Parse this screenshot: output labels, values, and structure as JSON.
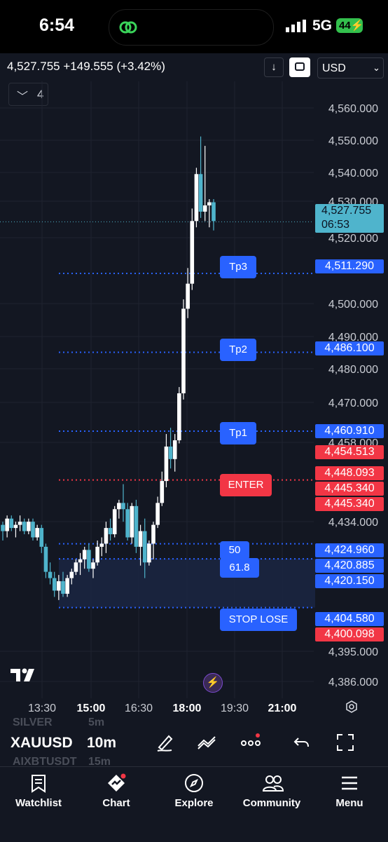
{
  "status_bar": {
    "time": "6:54",
    "network": "5G",
    "battery": "44"
  },
  "header": {
    "price_summary": "4,527.755 +149.555 (+3.42%)",
    "currency": "USD",
    "collapse_count": "4"
  },
  "chart_data": {
    "type": "candlestick",
    "symbol": "XAUUSD",
    "timeframe": "10m",
    "ylim": [
      4381,
      4565
    ],
    "y_ticks": [
      "4,560.000",
      "4,550.000",
      "4,540.000",
      "4,530.000",
      "4,520.000",
      "4,500.000",
      "4,490.000",
      "4,480.000",
      "4,470.000",
      "4,458.000",
      "4,434.000",
      "4,395.000",
      "4,386.000"
    ],
    "x_ticks": [
      {
        "label": "13:30",
        "bold": false
      },
      {
        "label": "15:00",
        "bold": true
      },
      {
        "label": "16:30",
        "bold": false
      },
      {
        "label": "18:00",
        "bold": true
      },
      {
        "label": "19:30",
        "bold": false
      },
      {
        "label": "21:00",
        "bold": true
      }
    ],
    "last_price": "4,527.755",
    "countdown": "06:53",
    "price_tags": [
      {
        "text": "4,511.290",
        "color": "#2962ff"
      },
      {
        "text": "4,486.100",
        "color": "#2962ff"
      },
      {
        "text": "4,460.910",
        "color": "#2962ff"
      },
      {
        "text": "4,454.513",
        "color": "#f23645"
      },
      {
        "text": "4,448.093",
        "color": "#f23645"
      },
      {
        "text": "4,445.340",
        "color": "#f23645"
      },
      {
        "text": "4,445.340",
        "color": "#f23645"
      },
      {
        "text": "4,424.960",
        "color": "#2962ff"
      },
      {
        "text": "4,420.885",
        "color": "#2962ff"
      },
      {
        "text": "4,420.150",
        "color": "#2962ff"
      },
      {
        "text": "4,404.580",
        "color": "#2962ff"
      },
      {
        "text": "4,400.098",
        "color": "#f23645"
      }
    ],
    "levels": [
      {
        "label": "Tp3",
        "value": 4511.29,
        "color": "#2962ff"
      },
      {
        "label": "Tp2",
        "value": 4486.1,
        "color": "#2962ff"
      },
      {
        "label": "Tp1",
        "value": 4460.91,
        "color": "#2962ff"
      },
      {
        "label": "ENTER",
        "value": 4445.34,
        "color": "#f23645"
      },
      {
        "label": "50",
        "value": 4424.96,
        "color": "#2962ff"
      },
      {
        "label": "61.8",
        "value": 4420.15,
        "color": "#2962ff"
      },
      {
        "label": "STOP LOSE",
        "value": 4404.58,
        "color": "#2962ff"
      }
    ],
    "candles": [
      [
        4431,
        4432,
        4426,
        4429
      ],
      [
        4429,
        4434,
        4427,
        4433
      ],
      [
        4433,
        4434,
        4429,
        4430
      ],
      [
        4430,
        4432,
        4427,
        4431
      ],
      [
        4431,
        4434,
        4429,
        4432
      ],
      [
        4432,
        4433,
        4428,
        4429
      ],
      [
        4429,
        4433,
        4428,
        4432
      ],
      [
        4432,
        4433,
        4426,
        4427
      ],
      [
        4427,
        4431,
        4426,
        4430
      ],
      [
        4430,
        4431,
        4422,
        4424
      ],
      [
        4424,
        4425,
        4414,
        4416
      ],
      [
        4416,
        4419,
        4412,
        4414
      ],
      [
        4414,
        4416,
        4408,
        4410
      ],
      [
        4410,
        4415,
        4407,
        4413
      ],
      [
        4413,
        4416,
        4408,
        4409
      ],
      [
        4409,
        4415,
        4408,
        4414
      ],
      [
        4414,
        4417,
        4412,
        4416
      ],
      [
        4416,
        4420,
        4415,
        4419
      ],
      [
        4419,
        4422,
        4415,
        4420
      ],
      [
        4420,
        4424,
        4417,
        4423
      ],
      [
        4423,
        4425,
        4416,
        4417
      ],
      [
        4417,
        4420,
        4414,
        4419
      ],
      [
        4419,
        4426,
        4418,
        4424
      ],
      [
        4424,
        4427,
        4421,
        4425
      ],
      [
        4425,
        4432,
        4422,
        4430
      ],
      [
        4430,
        4433,
        4426,
        4428
      ],
      [
        4428,
        4437,
        4427,
        4436
      ],
      [
        4436,
        4439,
        4433,
        4438
      ],
      [
        4438,
        4444,
        4432,
        4436
      ],
      [
        4436,
        4438,
        4426,
        4427
      ],
      [
        4427,
        4438,
        4425,
        4437
      ],
      [
        4437,
        4439,
        4422,
        4424
      ],
      [
        4424,
        4431,
        4418,
        4429
      ],
      [
        4429,
        4433,
        4414,
        4419
      ],
      [
        4419,
        4426,
        4418,
        4425
      ],
      [
        4425,
        4432,
        4420,
        4431
      ],
      [
        4431,
        4440,
        4430,
        4438
      ],
      [
        4438,
        4448,
        4437,
        4445
      ],
      [
        4445,
        4460,
        4443,
        4456
      ],
      [
        4456,
        4462,
        4449,
        4452
      ],
      [
        4452,
        4460,
        4448,
        4458
      ],
      [
        4458,
        4475,
        4457,
        4473
      ],
      [
        4473,
        4503,
        4471,
        4500
      ],
      [
        4500,
        4513,
        4497,
        4508
      ],
      [
        4508,
        4532,
        4506,
        4528
      ],
      [
        4528,
        4545,
        4526,
        4543
      ],
      [
        4543,
        4555,
        4529,
        4531
      ],
      [
        4531,
        4552,
        4528,
        4533
      ],
      [
        4533,
        4535,
        4526,
        4534
      ],
      [
        4534,
        4535,
        4525,
        4528
      ]
    ]
  },
  "toolbar": {
    "symbol": "XAUUSD",
    "timeframe": "10m",
    "ghost_symbol_1": "SILVER",
    "ghost_tf_1": "5m",
    "ghost_symbol_2": "AIXBTUSDT",
    "ghost_tf_2": "15m"
  },
  "nav": {
    "watchlist": "Watchlist",
    "chart": "Chart",
    "explore": "Explore",
    "community": "Community",
    "menu": "Menu"
  }
}
